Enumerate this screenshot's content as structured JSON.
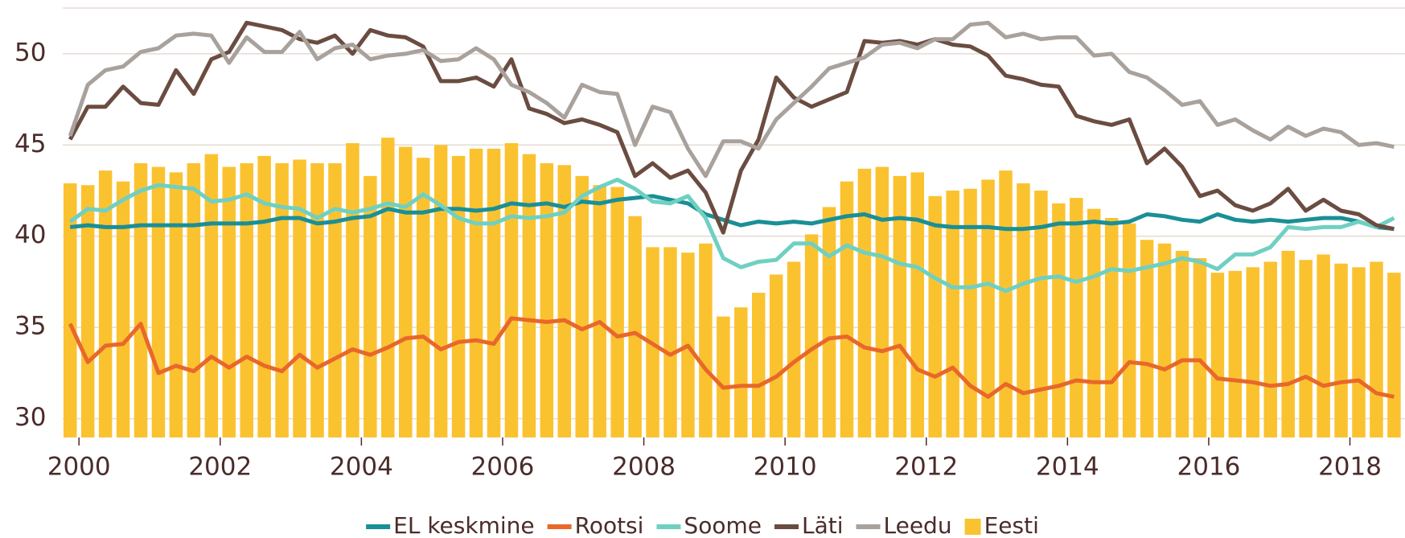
{
  "chart_data": {
    "type": "line",
    "x": [
      1999.875,
      2000.125,
      2000.375,
      2000.625,
      2000.875,
      2001.125,
      2001.375,
      2001.625,
      2001.875,
      2002.125,
      2002.375,
      2002.625,
      2002.875,
      2003.125,
      2003.375,
      2003.625,
      2003.875,
      2004.125,
      2004.375,
      2004.625,
      2004.875,
      2005.125,
      2005.375,
      2005.625,
      2005.875,
      2006.125,
      2006.375,
      2006.625,
      2006.875,
      2007.125,
      2007.375,
      2007.625,
      2007.875,
      2008.125,
      2008.375,
      2008.625,
      2008.875,
      2009.125,
      2009.375,
      2009.625,
      2009.875,
      2010.125,
      2010.375,
      2010.625,
      2010.875,
      2011.125,
      2011.375,
      2011.625,
      2011.875,
      2012.125,
      2012.375,
      2012.625,
      2012.875,
      2013.125,
      2013.375,
      2013.625,
      2013.875,
      2014.125,
      2014.375,
      2014.625,
      2014.875,
      2015.125,
      2015.375,
      2015.625,
      2015.875,
      2016.125,
      2016.375,
      2016.625,
      2016.875,
      2017.125,
      2017.375,
      2017.625,
      2017.875,
      2018.125,
      2018.375,
      2018.625
    ],
    "xlim": [
      1999.77,
      2018.78
    ],
    "xticks": [
      2000,
      2002,
      2004,
      2006,
      2008,
      2010,
      2012,
      2014,
      2016,
      2018
    ],
    "ylim": [
      28.97,
      52.55
    ],
    "yticks": [
      30,
      35,
      40,
      45,
      50
    ],
    "grid": true,
    "series": [
      {
        "name": "EL keskmine",
        "color": "#1a8f96",
        "values": [
          40.5,
          40.6,
          40.5,
          40.5,
          40.6,
          40.6,
          40.6,
          40.6,
          40.7,
          40.7,
          40.7,
          40.8,
          41.0,
          41.0,
          40.7,
          40.8,
          41.0,
          41.1,
          41.5,
          41.3,
          41.3,
          41.5,
          41.5,
          41.4,
          41.5,
          41.8,
          41.7,
          41.8,
          41.6,
          41.9,
          41.8,
          42.0,
          42.1,
          42.2,
          42.0,
          41.8,
          41.2,
          40.9,
          40.6,
          40.8,
          40.7,
          40.8,
          40.7,
          40.9,
          41.1,
          41.2,
          40.9,
          41.0,
          40.9,
          40.6,
          40.5,
          40.5,
          40.5,
          40.4,
          40.4,
          40.5,
          40.7,
          40.7,
          40.8,
          40.7,
          40.8,
          41.2,
          41.1,
          40.9,
          40.8,
          41.2,
          40.9,
          40.8,
          40.9,
          40.8,
          40.9,
          41.0,
          41.0,
          40.8,
          40.5,
          40.4
        ]
      },
      {
        "name": "Rootsi",
        "color": "#e8682a",
        "values": [
          35.2,
          33.1,
          34.0,
          34.1,
          35.2,
          32.5,
          32.9,
          32.6,
          33.4,
          32.8,
          33.4,
          32.9,
          32.6,
          33.5,
          32.8,
          33.3,
          33.8,
          33.5,
          33.9,
          34.4,
          34.5,
          33.8,
          34.2,
          34.3,
          34.1,
          35.5,
          35.4,
          35.3,
          35.4,
          34.9,
          35.3,
          34.5,
          34.7,
          34.1,
          33.5,
          34.0,
          32.7,
          31.7,
          31.8,
          31.8,
          32.3,
          33.1,
          33.8,
          34.4,
          34.5,
          33.9,
          33.7,
          34.0,
          32.7,
          32.3,
          32.8,
          31.8,
          31.2,
          31.9,
          31.4,
          31.6,
          31.8,
          32.1,
          32.0,
          32.0,
          33.1,
          33.0,
          32.7,
          33.2,
          33.2,
          32.2,
          32.1,
          32.0,
          31.8,
          31.9,
          32.3,
          31.8,
          32.0,
          32.1,
          31.4,
          31.2
        ]
      },
      {
        "name": "Soome",
        "color": "#6fd0c2",
        "values": [
          40.8,
          41.5,
          41.4,
          42.0,
          42.5,
          42.8,
          42.7,
          42.6,
          41.9,
          42.0,
          42.3,
          41.8,
          41.6,
          41.5,
          41.0,
          41.5,
          41.3,
          41.5,
          41.8,
          41.6,
          42.3,
          41.7,
          41.0,
          40.7,
          40.7,
          41.1,
          41.0,
          41.1,
          41.3,
          42.2,
          42.7,
          43.1,
          42.6,
          41.9,
          41.8,
          42.2,
          41.0,
          38.8,
          38.3,
          38.6,
          38.7,
          39.6,
          39.6,
          38.9,
          39.5,
          39.1,
          38.9,
          38.5,
          38.3,
          37.7,
          37.2,
          37.2,
          37.4,
          37.0,
          37.4,
          37.7,
          37.8,
          37.5,
          37.8,
          38.2,
          38.1,
          38.3,
          38.5,
          38.8,
          38.6,
          38.2,
          39.0,
          39.0,
          39.4,
          40.5,
          40.4,
          40.5,
          40.5,
          40.8,
          40.5,
          41.0
        ]
      },
      {
        "name": "Läti",
        "color": "#6b4c41",
        "values": [
          45.3,
          47.1,
          47.1,
          48.2,
          47.3,
          47.2,
          49.1,
          47.8,
          49.7,
          50.1,
          51.7,
          51.5,
          51.3,
          50.8,
          50.6,
          51.0,
          50.0,
          51.3,
          51.0,
          50.9,
          50.4,
          48.5,
          48.5,
          48.7,
          48.2,
          49.7,
          47.0,
          46.7,
          46.2,
          46.4,
          46.1,
          45.7,
          43.3,
          44.0,
          43.2,
          43.6,
          42.4,
          40.2,
          43.6,
          45.3,
          48.7,
          47.6,
          47.1,
          47.5,
          47.9,
          50.7,
          50.6,
          50.7,
          50.5,
          50.8,
          50.5,
          50.4,
          49.9,
          48.8,
          48.6,
          48.3,
          48.2,
          46.6,
          46.3,
          46.1,
          46.4,
          44.0,
          44.8,
          43.8,
          42.2,
          42.5,
          41.7,
          41.4,
          41.8,
          42.6,
          41.4,
          42.0,
          41.4,
          41.2,
          40.6,
          40.4
        ]
      },
      {
        "name": "Leedu",
        "color": "#a9a19b",
        "values": [
          45.5,
          48.3,
          49.1,
          49.3,
          50.1,
          50.3,
          51.0,
          51.1,
          51.0,
          49.5,
          50.9,
          50.1,
          50.1,
          51.2,
          49.7,
          50.3,
          50.5,
          49.7,
          49.9,
          50.0,
          50.2,
          49.6,
          49.7,
          50.3,
          49.7,
          48.3,
          47.9,
          47.3,
          46.5,
          48.3,
          47.9,
          47.8,
          45.0,
          47.1,
          46.8,
          44.8,
          43.3,
          45.2,
          45.2,
          44.8,
          46.4,
          47.3,
          48.2,
          49.2,
          49.5,
          49.8,
          50.5,
          50.6,
          50.3,
          50.8,
          50.8,
          51.6,
          51.7,
          50.9,
          51.1,
          50.8,
          50.9,
          50.9,
          49.9,
          50.0,
          49.0,
          48.7,
          48.0,
          47.2,
          47.4,
          46.1,
          46.4,
          45.8,
          45.3,
          46.0,
          45.5,
          45.9,
          45.7,
          45.0,
          45.1,
          44.9
        ]
      },
      {
        "name": "Eesti",
        "type": "bar",
        "color": "#fbc230",
        "values": [
          42.9,
          42.8,
          43.6,
          43.0,
          44.0,
          43.8,
          43.5,
          44.0,
          44.5,
          43.8,
          44.0,
          44.4,
          44.0,
          44.2,
          44.0,
          44.0,
          45.1,
          43.3,
          45.4,
          44.9,
          44.3,
          45.0,
          44.4,
          44.8,
          44.8,
          45.1,
          44.5,
          44.0,
          43.9,
          43.3,
          42.8,
          42.7,
          41.1,
          39.4,
          39.4,
          39.1,
          39.6,
          35.6,
          36.1,
          36.9,
          37.9,
          38.6,
          40.1,
          41.6,
          43.0,
          43.7,
          43.8,
          43.3,
          43.5,
          42.2,
          42.5,
          42.6,
          43.1,
          43.6,
          42.9,
          42.5,
          41.8,
          42.1,
          41.5,
          41.0,
          40.7,
          39.8,
          39.6,
          39.2,
          38.8,
          38.0,
          38.1,
          38.3,
          38.6,
          39.2,
          38.7,
          39.0,
          38.5,
          38.3,
          38.6,
          38.0
        ]
      }
    ]
  }
}
